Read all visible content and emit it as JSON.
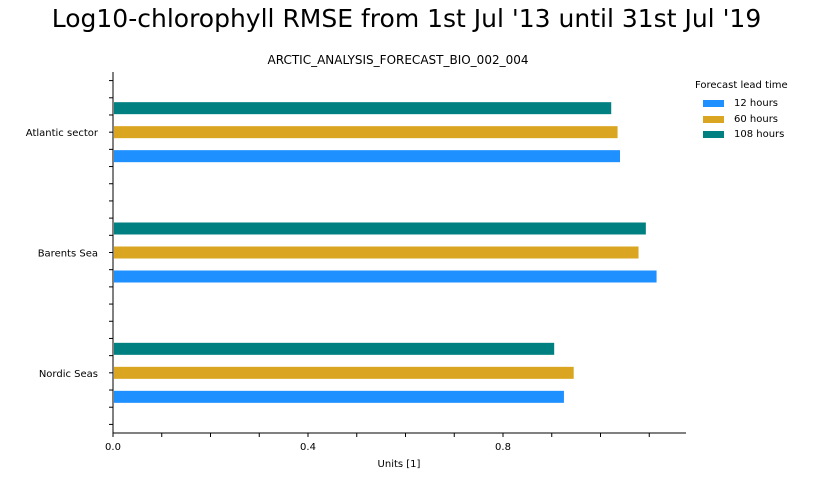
{
  "title": "Log10-chlorophyll RMSE from 1st Jul '13 until 31st Jul '19",
  "legend_title": "Forecast lead time",
  "chart_data": {
    "type": "bar",
    "orientation": "horizontal",
    "subtitle": "ARCTIC_ANALYSIS_FORECAST_BIO_002_004",
    "xlabel": "Units [1]",
    "ylabel": "",
    "xlim": [
      0,
      1.17
    ],
    "xticks": [
      "0.0",
      "0.4",
      "0.8"
    ],
    "xtick_values": [
      0.0,
      0.4,
      0.8
    ],
    "categories": [
      "Atlantic sector",
      "Barents Sea",
      "Nordic Seas"
    ],
    "series": [
      {
        "name": "12 hours",
        "color": "#1e90ff",
        "values": [
          1.04,
          1.115,
          0.925
        ]
      },
      {
        "name": "60 hours",
        "color": "#daa520",
        "values": [
          1.035,
          1.078,
          0.945
        ]
      },
      {
        "name": "108 hours",
        "color": "#008080",
        "values": [
          1.022,
          1.093,
          0.905
        ]
      }
    ],
    "grid": false,
    "legend_position": "top-right"
  }
}
